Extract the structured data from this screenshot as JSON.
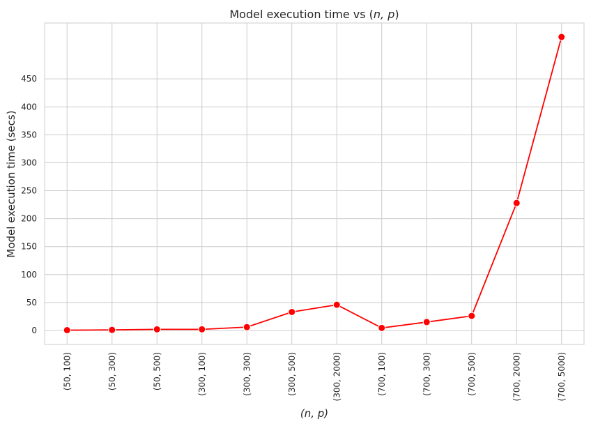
{
  "chart_data": {
    "type": "line",
    "title": "Model execution time vs (n, p)",
    "title_prefix": "Model execution time vs (",
    "title_math": "n, p",
    "title_suffix": ")",
    "xlabel": "(n, p)",
    "ylabel": "Model execution time (secs)",
    "categories": [
      "(50, 100)",
      "(50, 300)",
      "(50, 500)",
      "(300, 100)",
      "(300, 300)",
      "(300, 500)",
      "(300, 2000)",
      "(700, 100)",
      "(700, 300)",
      "(700, 500)",
      "(700, 2000)",
      "(700, 5000)"
    ],
    "series": [
      {
        "values": [
          0.5,
          1,
          2,
          2,
          6,
          33,
          46,
          4.5,
          15,
          26,
          228,
          525
        ],
        "color": "#ff0000"
      }
    ],
    "yticks": [
      0,
      50,
      100,
      150,
      200,
      250,
      300,
      350,
      400,
      450
    ],
    "ylim": [
      -25,
      550
    ],
    "grid": true,
    "marker": "circle"
  }
}
